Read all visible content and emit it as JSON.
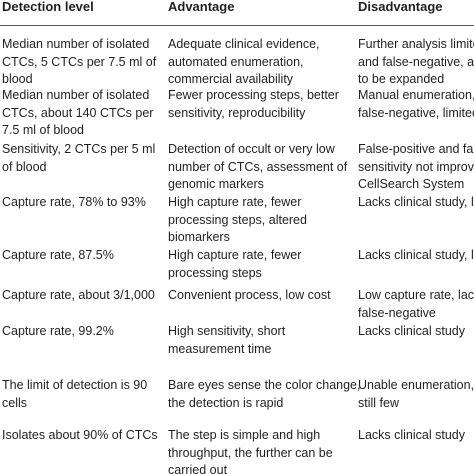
{
  "table": {
    "header": [
      "Detection level",
      "Advantage",
      "Disadvantage"
    ],
    "rows": [
      [
        [
          "Median number of isolated",
          "CTCs, 5 CTCs per 7.5 ml of",
          "blood"
        ],
        [
          "Adequate clinical evidence,",
          "automated enumeration,",
          "commercial availability"
        ],
        [
          "Further analysis limite",
          "and false-negative, ap",
          "to be expanded"
        ]
      ],
      [
        [
          "Median number of isolated",
          "CTCs, about 140 CTCs per",
          "7.5 ml of blood"
        ],
        [
          "Fewer processing steps, better",
          "sensitivity, reproducibility"
        ],
        [
          "Manual enumeration,",
          "false-negative, limitec"
        ]
      ],
      [
        [
          "Sensitivity, 2 CTCs per 5 ml",
          "of blood"
        ],
        [
          "Detection of occult or very low",
          "number of CTCs, assessment of",
          "genomic markers"
        ],
        [
          "False-positive and false",
          "sensitivity not improv",
          "CellSearch System"
        ]
      ],
      [
        [
          "Capture rate, 78% to 93%"
        ],
        [
          "High capture rate, fewer",
          "processing steps, altered",
          "biomarkers"
        ],
        [
          "Lacks clinical study, li"
        ]
      ],
      [
        [
          "Capture rate, 87.5%"
        ],
        [
          "High capture rate, fewer",
          "processing steps"
        ],
        [
          "Lacks clinical study, li"
        ]
      ],
      [
        [
          "Capture rate, about 3/1,000"
        ],
        [
          "Convenient process, low cost"
        ],
        [
          "Low capture rate, lack",
          "false-negative"
        ]
      ],
      [
        [
          "Capture rate, 99.2%"
        ],
        [
          "High sensitivity, short",
          "measurement time"
        ],
        [
          "Lacks clinical study"
        ]
      ],
      [
        [
          "The limit of detection is 90",
          "cells"
        ],
        [
          "Bare eyes sense the color change,",
          "the detection is rapid"
        ],
        [
          "Unable enumeration,",
          "still few"
        ]
      ],
      [
        [
          "Isolates about 90% of CTCs"
        ],
        [
          "The step is simple and high",
          "throughput, the further can be",
          "carried out"
        ],
        [
          "Lacks clinical study"
        ]
      ]
    ]
  }
}
